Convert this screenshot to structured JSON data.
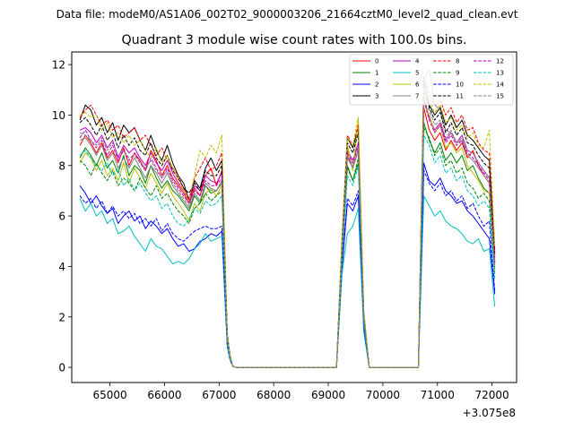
{
  "chart_data": {
    "type": "line",
    "suptitle": "Data file: modeM0/AS1A06_002T02_9000003206_21664cztM0_level2_quad_clean.evt",
    "title": "Quadrant 3 module wise count rates with 100.0s bins.",
    "xlabel": "",
    "ylabel": "",
    "x_offset_label": "+3.075e8",
    "xlim": [
      64300,
      72450
    ],
    "ylim": [
      -0.6,
      12.5
    ],
    "x_ticks": [
      65000,
      66000,
      67000,
      68000,
      69000,
      70000,
      71000,
      72000
    ],
    "x_tick_labels": [
      "65000",
      "66000",
      "67000",
      "68000",
      "69000",
      "70000",
      "71000",
      "72000"
    ],
    "y_ticks": [
      0,
      2,
      4,
      6,
      8,
      10,
      12
    ],
    "y_tick_labels": [
      "0",
      "2",
      "4",
      "6",
      "8",
      "10",
      "12"
    ],
    "legend_position": "top-right",
    "x": [
      64450,
      64550,
      64650,
      64750,
      64850,
      64950,
      65050,
      65150,
      65250,
      65350,
      65450,
      65550,
      65650,
      65750,
      65850,
      65950,
      66050,
      66150,
      66250,
      66350,
      66450,
      66550,
      66650,
      66750,
      66850,
      66950,
      67050,
      67150,
      67200,
      67250,
      67300,
      67400,
      69150,
      69250,
      69350,
      69450,
      69550,
      69650,
      69750,
      70650,
      70750,
      70850,
      70950,
      71050,
      71150,
      71250,
      71350,
      71450,
      71550,
      71650,
      71750,
      71850,
      71950,
      72050
    ],
    "series": [
      {
        "name": "0",
        "color": "#ff0000",
        "dash": "solid",
        "values": [
          8.8,
          9.2,
          8.9,
          8.5,
          8.9,
          8.3,
          8.6,
          8.1,
          8.7,
          8.0,
          8.5,
          8.2,
          7.8,
          8.6,
          8.2,
          7.6,
          8.0,
          7.5,
          7.2,
          6.9,
          6.5,
          7.1,
          6.8,
          7.6,
          7.9,
          7.2,
          7.8,
          1.2,
          0.4,
          0.05,
          0,
          0,
          0,
          4.8,
          8.4,
          7.9,
          8.6,
          2.0,
          0,
          0,
          10.3,
          9.4,
          9.0,
          9.3,
          8.6,
          9.0,
          8.6,
          8.9,
          8.3,
          8.6,
          8.0,
          7.6,
          7.3,
          4.2
        ]
      },
      {
        "name": "1",
        "color": "#008000",
        "dash": "solid",
        "values": [
          8.3,
          8.7,
          8.4,
          8.0,
          8.5,
          7.9,
          8.2,
          7.7,
          8.4,
          7.6,
          8.0,
          7.8,
          7.3,
          8.0,
          7.5,
          7.1,
          7.4,
          7.0,
          6.8,
          6.5,
          6.2,
          6.8,
          6.5,
          7.2,
          6.9,
          7.0,
          7.3,
          1.1,
          0.35,
          0.05,
          0,
          0,
          0,
          4.5,
          8.0,
          7.4,
          8.1,
          1.9,
          0,
          0,
          9.7,
          9.0,
          8.5,
          8.9,
          8.2,
          8.5,
          8.1,
          8.4,
          7.8,
          8.0,
          7.5,
          7.1,
          6.9,
          3.9
        ]
      },
      {
        "name": "2",
        "color": "#0000ff",
        "dash": "solid",
        "values": [
          7.2,
          6.9,
          6.5,
          6.8,
          6.4,
          6.1,
          6.3,
          5.7,
          6.0,
          6.2,
          5.8,
          6.0,
          5.5,
          5.8,
          5.6,
          5.3,
          5.5,
          5.1,
          4.8,
          4.9,
          4.6,
          4.7,
          5.0,
          5.1,
          5.3,
          5.2,
          5.4,
          0.9,
          0.3,
          0.05,
          0,
          0,
          0,
          3.9,
          6.5,
          6.2,
          6.8,
          1.6,
          0,
          0,
          8.1,
          7.4,
          7.2,
          7.5,
          7.0,
          6.8,
          6.5,
          6.6,
          6.2,
          6.0,
          5.7,
          5.4,
          5.1,
          2.9
        ]
      },
      {
        "name": "3",
        "color": "#000000",
        "dash": "solid",
        "values": [
          9.8,
          10.4,
          10.2,
          9.6,
          9.9,
          9.3,
          9.7,
          9.0,
          9.6,
          9.3,
          9.5,
          9.0,
          8.6,
          9.2,
          8.6,
          8.2,
          8.8,
          8.1,
          7.6,
          7.3,
          6.6,
          7.4,
          7.1,
          7.9,
          8.3,
          7.8,
          8.2,
          1.3,
          0.45,
          0.05,
          0,
          0,
          0,
          5.0,
          9.1,
          8.7,
          9.5,
          2.2,
          0,
          0,
          11.3,
          10.4,
          10.0,
          10.3,
          9.6,
          10.0,
          9.5,
          9.8,
          9.2,
          9.0,
          8.7,
          8.4,
          8.2,
          4.5
        ]
      },
      {
        "name": "4",
        "color": "#bf00bf",
        "dash": "solid",
        "values": [
          9.4,
          9.5,
          9.3,
          8.9,
          9.2,
          8.7,
          9.0,
          8.3,
          8.8,
          8.5,
          8.7,
          8.3,
          8.0,
          8.5,
          8.1,
          7.8,
          8.2,
          7.7,
          7.3,
          7.0,
          6.6,
          7.2,
          7.0,
          7.6,
          7.4,
          7.3,
          7.7,
          1.2,
          0.4,
          0.05,
          0,
          0,
          0,
          4.7,
          8.6,
          8.2,
          8.9,
          2.0,
          0,
          0,
          10.7,
          9.9,
          9.4,
          9.7,
          9.0,
          9.3,
          8.9,
          9.2,
          8.6,
          8.5,
          8.1,
          7.8,
          7.5,
          4.2
        ]
      },
      {
        "name": "5",
        "color": "#00bfbf",
        "dash": "solid",
        "values": [
          6.7,
          6.2,
          6.5,
          6.0,
          6.2,
          5.7,
          5.9,
          5.3,
          5.4,
          5.6,
          5.2,
          4.9,
          4.6,
          5.1,
          4.8,
          4.7,
          4.4,
          4.1,
          4.2,
          4.1,
          4.3,
          4.7,
          4.9,
          5.3,
          5.0,
          5.1,
          5.2,
          0.8,
          0.3,
          0.05,
          0,
          0,
          0,
          3.7,
          5.3,
          5.6,
          6.3,
          1.4,
          0,
          0,
          6.8,
          6.4,
          6.0,
          6.2,
          5.8,
          5.6,
          5.5,
          5.3,
          5.0,
          4.9,
          5.1,
          4.6,
          4.7,
          2.4
        ]
      },
      {
        "name": "6",
        "color": "#bfbf00",
        "dash": "solid",
        "values": [
          8.1,
          8.5,
          8.3,
          7.8,
          8.2,
          7.6,
          7.9,
          7.4,
          8.1,
          7.3,
          7.9,
          7.5,
          7.1,
          7.7,
          7.3,
          6.9,
          7.3,
          6.8,
          6.5,
          6.2,
          5.8,
          6.5,
          6.2,
          6.9,
          7.1,
          6.8,
          7.2,
          1.1,
          0.35,
          0.05,
          0,
          0,
          0,
          4.4,
          8.8,
          7.8,
          9.8,
          2.1,
          0,
          0,
          10.5,
          10.0,
          9.3,
          9.6,
          8.7,
          8.9,
          8.5,
          8.7,
          8.0,
          7.7,
          7.4,
          7.0,
          6.9,
          3.8
        ]
      },
      {
        "name": "7",
        "color": "#808080",
        "dash": "solid",
        "values": [
          9.0,
          9.1,
          8.8,
          8.4,
          8.8,
          8.2,
          8.5,
          7.9,
          8.3,
          7.9,
          8.3,
          7.9,
          7.5,
          8.0,
          7.7,
          7.3,
          7.7,
          7.2,
          6.9,
          6.6,
          6.3,
          6.9,
          6.6,
          7.3,
          7.1,
          7.0,
          7.4,
          1.1,
          0.4,
          0.05,
          0,
          0,
          0,
          4.6,
          8.3,
          7.9,
          8.6,
          2.0,
          0,
          0,
          11.4,
          11.8,
          10.4,
          10.2,
          9.4,
          9.3,
          8.9,
          9.0,
          8.4,
          8.2,
          7.9,
          7.6,
          7.3,
          4.0
        ]
      },
      {
        "name": "8",
        "color": "#ff0000",
        "dash": "dashed",
        "values": [
          9.9,
          10.2,
          10.4,
          10.0,
          9.6,
          9.8,
          9.4,
          9.6,
          9.1,
          9.3,
          9.5,
          9.0,
          9.2,
          8.8,
          8.4,
          8.7,
          8.2,
          7.9,
          7.6,
          7.1,
          6.7,
          7.5,
          7.9,
          8.3,
          7.8,
          8.0,
          8.5,
          1.3,
          0.45,
          0.05,
          0,
          0,
          0,
          5.1,
          9.2,
          8.8,
          9.6,
          2.2,
          0,
          0,
          11.5,
          10.8,
          10.4,
          10.6,
          10.0,
          10.3,
          9.7,
          10.0,
          9.4,
          9.5,
          8.9,
          8.6,
          8.5,
          4.6
        ]
      },
      {
        "name": "9",
        "color": "#008000",
        "dash": "dashed",
        "values": [
          8.2,
          8.0,
          7.6,
          8.1,
          7.7,
          7.4,
          7.8,
          7.2,
          7.5,
          7.3,
          7.0,
          7.5,
          7.1,
          6.8,
          7.2,
          6.7,
          6.9,
          6.5,
          6.2,
          6.0,
          5.7,
          6.3,
          6.5,
          6.9,
          6.6,
          6.8,
          7.0,
          1.0,
          0.35,
          0.05,
          0,
          0,
          0,
          4.3,
          7.9,
          7.4,
          8.3,
          1.8,
          0,
          0,
          9.5,
          9.1,
          8.4,
          8.7,
          8.0,
          8.2,
          7.7,
          7.9,
          7.3,
          7.1,
          6.7,
          6.9,
          6.6,
          3.6
        ]
      },
      {
        "name": "10",
        "color": "#0000ff",
        "dash": "dashed",
        "values": [
          6.8,
          6.5,
          6.7,
          6.3,
          6.6,
          6.1,
          6.4,
          6.0,
          6.2,
          5.9,
          6.1,
          5.7,
          5.9,
          5.6,
          5.9,
          5.4,
          5.7,
          5.3,
          5.1,
          5.0,
          5.2,
          5.4,
          5.5,
          5.6,
          5.5,
          5.5,
          5.6,
          0.9,
          0.3,
          0.05,
          0,
          0,
          0,
          4.0,
          6.7,
          6.4,
          7.0,
          1.6,
          0,
          0,
          7.8,
          7.3,
          7.0,
          7.3,
          6.8,
          7.0,
          6.6,
          6.8,
          6.3,
          6.5,
          6.0,
          5.6,
          5.8,
          3.0
        ]
      },
      {
        "name": "11",
        "color": "#000000",
        "dash": "dashed",
        "values": [
          9.7,
          9.9,
          9.6,
          9.2,
          9.6,
          9.0,
          9.3,
          8.7,
          9.2,
          8.8,
          9.1,
          8.6,
          8.4,
          8.9,
          8.3,
          8.0,
          8.4,
          7.8,
          7.5,
          7.1,
          6.9,
          7.3,
          7.0,
          7.8,
          7.6,
          7.6,
          8.0,
          1.3,
          0.45,
          0.05,
          0,
          0,
          0,
          4.9,
          8.9,
          8.5,
          9.3,
          2.1,
          0,
          0,
          11.0,
          10.3,
          9.8,
          10.1,
          9.3,
          9.7,
          9.2,
          9.5,
          8.9,
          8.8,
          8.4,
          8.1,
          7.9,
          4.4
        ]
      },
      {
        "name": "12",
        "color": "#bf00bf",
        "dash": "dashed",
        "values": [
          9.1,
          9.4,
          9.0,
          8.7,
          9.0,
          8.4,
          8.8,
          8.2,
          8.6,
          8.2,
          8.5,
          8.1,
          7.8,
          8.3,
          7.9,
          7.5,
          7.9,
          7.4,
          7.1,
          6.8,
          6.5,
          7.0,
          6.8,
          7.4,
          7.2,
          7.2,
          7.5,
          1.2,
          0.4,
          0.05,
          0,
          0,
          0,
          4.7,
          8.5,
          8.1,
          8.8,
          2.0,
          0,
          0,
          10.6,
          9.8,
          9.3,
          9.6,
          8.9,
          9.2,
          8.8,
          9.0,
          8.5,
          8.3,
          8.0,
          7.7,
          7.4,
          4.1
        ]
      },
      {
        "name": "13",
        "color": "#00bfbf",
        "dash": "dashed",
        "values": [
          8.4,
          8.6,
          8.3,
          8.0,
          7.8,
          8.1,
          7.6,
          7.9,
          7.2,
          7.5,
          7.0,
          7.3,
          6.9,
          6.6,
          6.8,
          6.3,
          6.5,
          6.0,
          5.7,
          5.6,
          5.9,
          6.3,
          6.1,
          6.6,
          6.4,
          6.5,
          6.8,
          1.0,
          0.35,
          0.05,
          0,
          0,
          0,
          4.2,
          7.6,
          7.2,
          8.0,
          1.8,
          0,
          0,
          9.2,
          8.8,
          8.1,
          8.4,
          7.7,
          7.9,
          7.4,
          7.6,
          7.0,
          6.8,
          6.4,
          6.6,
          6.3,
          3.5
        ]
      },
      {
        "name": "14",
        "color": "#bfbf00",
        "dash": "dashed",
        "values": [
          10.0,
          10.1,
          9.9,
          10.0,
          9.4,
          9.7,
          9.1,
          9.3,
          8.9,
          9.2,
          8.8,
          9.0,
          8.6,
          8.3,
          8.7,
          8.1,
          8.4,
          7.9,
          7.4,
          7.0,
          6.6,
          7.6,
          8.6,
          8.3,
          8.8,
          8.5,
          9.2,
          1.3,
          0.5,
          0.05,
          0,
          0,
          0,
          5.2,
          9.1,
          8.8,
          9.9,
          2.3,
          0,
          0,
          11.1,
          10.6,
          10.1,
          10.4,
          9.7,
          9.9,
          9.4,
          9.6,
          9.1,
          9.3,
          8.8,
          8.7,
          9.4,
          4.8
        ]
      },
      {
        "name": "15",
        "color": "#808080",
        "dash": "dashed",
        "values": [
          9.3,
          9.2,
          9.0,
          8.8,
          9.1,
          8.6,
          8.9,
          8.4,
          8.6,
          8.3,
          8.4,
          8.1,
          7.9,
          8.2,
          7.8,
          7.5,
          7.8,
          7.3,
          7.0,
          6.7,
          6.4,
          6.9,
          6.6,
          7.2,
          7.0,
          7.0,
          7.3,
          1.1,
          0.4,
          0.05,
          0,
          0,
          0,
          4.6,
          8.4,
          8.0,
          8.7,
          2.0,
          0,
          0,
          10.5,
          10.2,
          9.6,
          9.8,
          9.1,
          9.4,
          8.9,
          9.1,
          8.6,
          8.5,
          8.1,
          7.8,
          7.5,
          4.1
        ]
      }
    ]
  }
}
